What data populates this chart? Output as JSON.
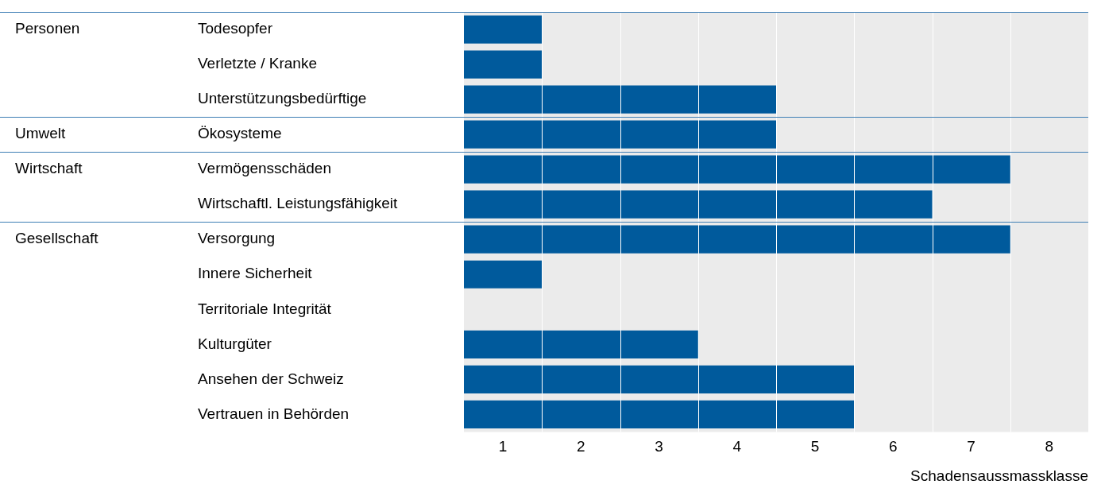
{
  "chart_data": {
    "type": "bar",
    "orientation": "horizontal",
    "xlabel": "Schadensaussmassklasse",
    "categories": [
      "Todesopfer",
      "Verletzte / Kranke",
      "Unterstützungsbedürftige",
      "Ökosysteme",
      "Vermögensschäden",
      "Wirtschaftl. Leistungsfähigkeit",
      "Versorgung",
      "Innere Sicherheit",
      "Territoriale Integrität",
      "Kulturgüter",
      "Ansehen der Schweiz",
      "Vertrauen in Behörden"
    ],
    "values": [
      1,
      1,
      4,
      4,
      7,
      6,
      7,
      1,
      0,
      3,
      5,
      5
    ],
    "color": "#005a9c",
    "xlim": [
      0,
      8
    ],
    "xticks": [
      {
        "value": 0.5,
        "label": "1"
      },
      {
        "value": 1,
        "label": null
      },
      {
        "value": 1.5,
        "label": "2"
      },
      {
        "value": 2,
        "label": null
      },
      {
        "value": 2.5,
        "label": "3"
      },
      {
        "value": 3,
        "label": null
      },
      {
        "value": 3.5,
        "label": "4"
      },
      {
        "value": 4,
        "label": null
      },
      {
        "value": 4.5,
        "label": "5"
      },
      {
        "value": 5,
        "label": null
      },
      {
        "value": 5.5,
        "label": "6"
      },
      {
        "value": 6,
        "label": null
      },
      {
        "value": 6.5,
        "label": "7"
      },
      {
        "value": 7,
        "label": null
      },
      {
        "value": 7.5,
        "label": "8"
      }
    ],
    "grid": "x",
    "annotations": [
      "Personen",
      "Umwelt",
      "Wirtschaft",
      "Gesellschaft"
    ]
  }
}
